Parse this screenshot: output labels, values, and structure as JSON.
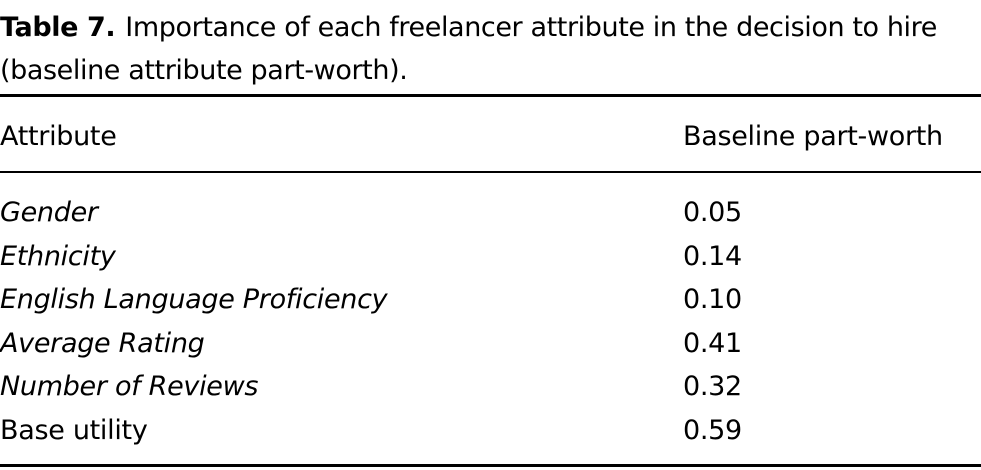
{
  "caption": {
    "label": "Table 7.",
    "text": "Importance of each freelancer attribute in the decision to hire (baseline attribute part-worth)."
  },
  "table": {
    "columns": [
      "Attribute",
      "Baseline part-worth"
    ],
    "rows": [
      [
        "Gender",
        "0.05"
      ],
      [
        "Ethnicity",
        "0.14"
      ],
      [
        "English Language Proficiency",
        "0.10"
      ],
      [
        "Average Rating",
        "0.41"
      ],
      [
        "Number of Reviews",
        "0.32"
      ],
      [
        "Base utility",
        "0.59"
      ]
    ]
  }
}
